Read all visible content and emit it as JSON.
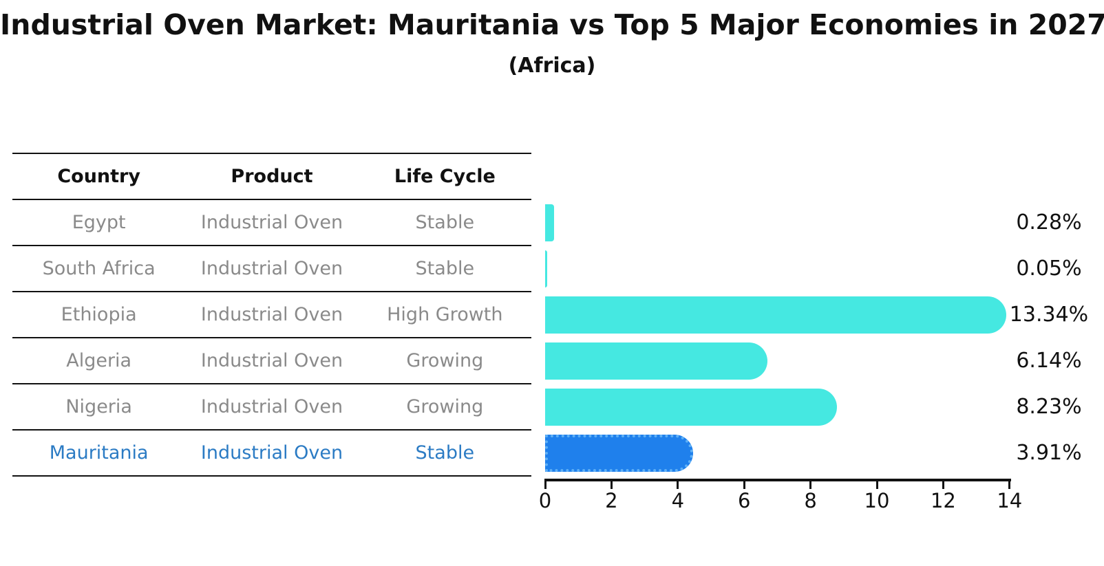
{
  "title": "Industrial Oven Market: Mauritania vs Top 5 Major Economies in 2027",
  "subtitle": "(Africa)",
  "table": {
    "headers": [
      "Country",
      "Product",
      "Life Cycle"
    ],
    "rows": [
      {
        "country": "Egypt",
        "product": "Industrial Oven",
        "life_cycle": "Stable",
        "highlight": false
      },
      {
        "country": "South Africa",
        "product": "Industrial Oven",
        "life_cycle": "Stable",
        "highlight": false
      },
      {
        "country": "Ethiopia",
        "product": "Industrial Oven",
        "life_cycle": "High Growth",
        "highlight": false
      },
      {
        "country": "Algeria",
        "product": "Industrial Oven",
        "life_cycle": "Growing",
        "highlight": false
      },
      {
        "country": "Nigeria",
        "product": "Industrial Oven",
        "life_cycle": "Growing",
        "highlight": false
      },
      {
        "country": "Mauritania",
        "product": "Industrial Oven",
        "life_cycle": "Stable",
        "highlight": true
      }
    ]
  },
  "chart_data": {
    "type": "bar",
    "orientation": "horizontal",
    "title": "Industrial Oven Market: Mauritania vs Top 5 Major Economies in 2027 (Africa)",
    "categories": [
      "Egypt",
      "South Africa",
      "Ethiopia",
      "Algeria",
      "Nigeria",
      "Mauritania"
    ],
    "values": [
      0.28,
      0.05,
      13.34,
      6.14,
      8.23,
      3.91
    ],
    "labels": [
      "0.28%",
      "0.05%",
      "13.34%",
      "6.14%",
      "8.23%",
      "3.91%"
    ],
    "unit": "%",
    "xlim": [
      0,
      14
    ],
    "x_ticks": [
      0,
      2,
      4,
      6,
      8,
      10,
      12,
      14
    ],
    "grid": false,
    "legend": false,
    "highlighted_category": "Mauritania"
  },
  "colors": {
    "bar_default": "#45e8e1",
    "bar_highlight": "#1f80ec",
    "bar_highlight_border": "#5fb0f6",
    "text_primary": "#111111",
    "text_muted": "#8a8a8a",
    "text_highlight": "#2b7bc4",
    "background": "#ffffff"
  }
}
